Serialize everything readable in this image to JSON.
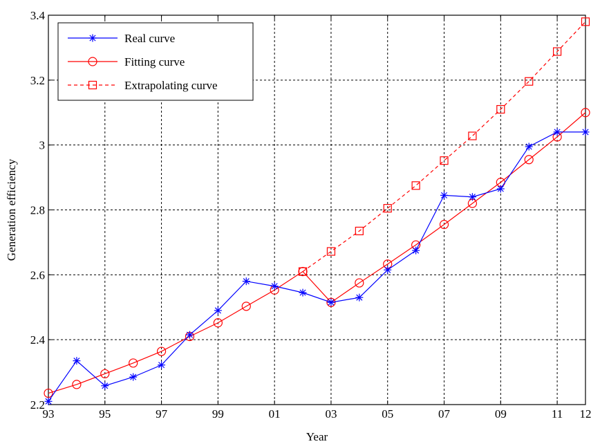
{
  "chart_data": {
    "type": "line",
    "xlabel": "Year",
    "ylabel": "Generation efficiency",
    "xlim": [
      1993,
      2012
    ],
    "ylim": [
      2.2,
      3.4
    ],
    "x_ticks": [
      {
        "value": 1993,
        "label": "93"
      },
      {
        "value": 1995,
        "label": "95"
      },
      {
        "value": 1997,
        "label": "97"
      },
      {
        "value": 1999,
        "label": "99"
      },
      {
        "value": 2001,
        "label": "01"
      },
      {
        "value": 2003,
        "label": "03"
      },
      {
        "value": 2005,
        "label": "05"
      },
      {
        "value": 2007,
        "label": "07"
      },
      {
        "value": 2009,
        "label": "09"
      },
      {
        "value": 2011,
        "label": "11"
      },
      {
        "value": 2012,
        "label": "12"
      }
    ],
    "y_ticks": [
      {
        "value": 2.2,
        "label": "2.2"
      },
      {
        "value": 2.4,
        "label": "2.4"
      },
      {
        "value": 2.6,
        "label": "2.6"
      },
      {
        "value": 2.8,
        "label": "2.8"
      },
      {
        "value": 3.0,
        "label": "3"
      },
      {
        "value": 3.2,
        "label": "3.2"
      },
      {
        "value": 3.4,
        "label": "3.4"
      }
    ],
    "grid": true,
    "legend_position": "top-left",
    "series": [
      {
        "name": "Real curve",
        "color": "#0000ff",
        "marker": "asterisk",
        "line_style": "solid",
        "x": [
          1993,
          1994,
          1995,
          1996,
          1997,
          1998,
          1999,
          2000,
          2001,
          2002,
          2003,
          2004,
          2005,
          2006,
          2007,
          2008,
          2009,
          2010,
          2011,
          2012
        ],
        "y": [
          2.21,
          2.335,
          2.258,
          2.285,
          2.322,
          2.415,
          2.49,
          2.58,
          2.565,
          2.545,
          2.515,
          2.53,
          2.615,
          2.675,
          2.845,
          2.84,
          2.865,
          2.995,
          3.04,
          3.04
        ]
      },
      {
        "name": "Fitting curve",
        "color": "#ff0000",
        "marker": "circle",
        "line_style": "solid",
        "x": [
          1993,
          1994,
          1995,
          1996,
          1997,
          1998,
          1999,
          2000,
          2001,
          2002,
          2003,
          2004,
          2005,
          2006,
          2007,
          2008,
          2009,
          2010,
          2011,
          2012
        ],
        "y": [
          2.235,
          2.262,
          2.295,
          2.328,
          2.364,
          2.41,
          2.452,
          2.503,
          2.553,
          2.61,
          2.515,
          2.575,
          2.633,
          2.692,
          2.755,
          2.82,
          2.885,
          2.955,
          3.025,
          3.1
        ]
      },
      {
        "name": "Extrapolating curve",
        "color": "#ff0000",
        "marker": "square",
        "line_style": "dashed",
        "x": [
          2002,
          2003,
          2004,
          2005,
          2006,
          2007,
          2008,
          2009,
          2010,
          2011,
          2012
        ],
        "y": [
          2.61,
          2.672,
          2.735,
          2.805,
          2.875,
          2.952,
          3.028,
          3.11,
          3.196,
          3.288,
          3.38
        ]
      }
    ]
  }
}
